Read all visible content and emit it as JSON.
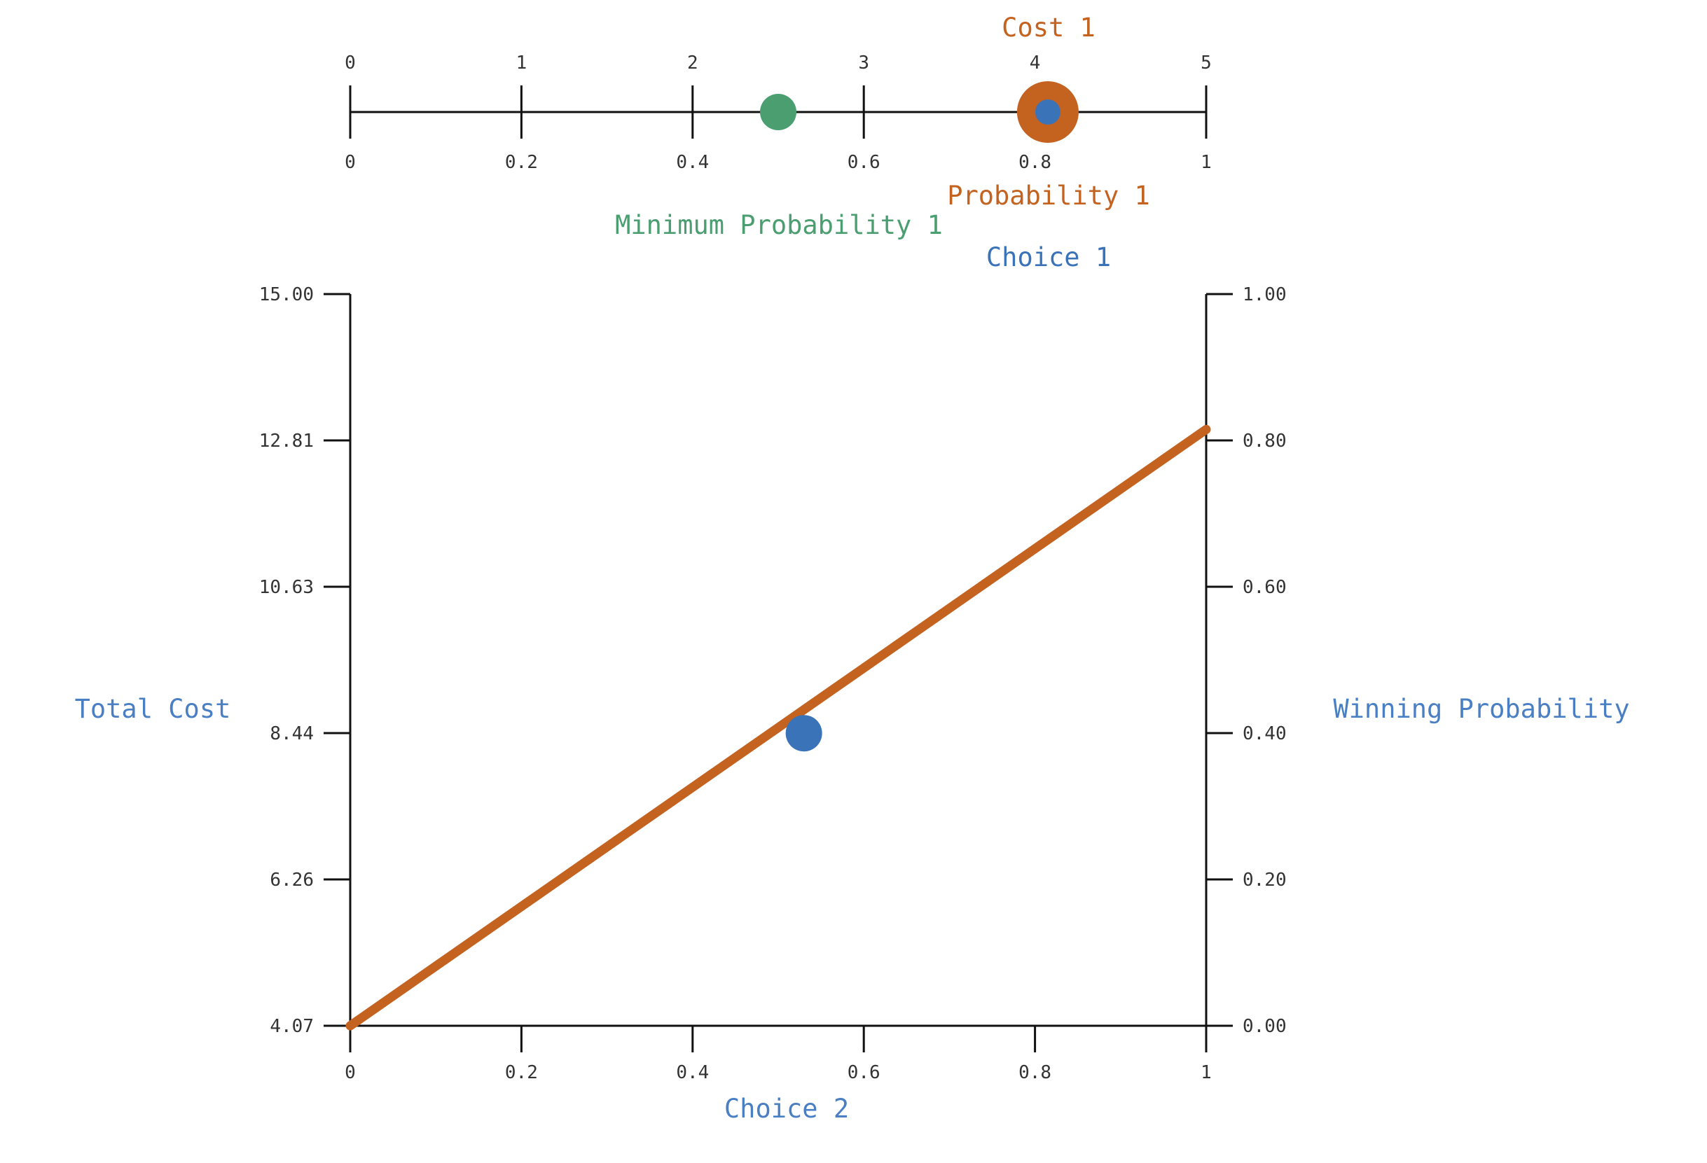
{
  "colors": {
    "axis": "#111111",
    "cost": "#c4621f",
    "choice": "#3b73b9",
    "min_probability": "#4a9e70",
    "axis_title": "#4a7fc4",
    "tick_text": "#333333"
  },
  "chart_data": [
    {
      "type": "scatter",
      "top_scale": {
        "ticks": [
          "0",
          "1",
          "2",
          "3",
          "4",
          "5"
        ],
        "range": [
          0,
          5
        ]
      },
      "bottom_scale": {
        "ticks": [
          "0",
          "0.2",
          "0.4",
          "0.6",
          "0.8",
          "1"
        ],
        "range": [
          0,
          1
        ]
      },
      "markers": [
        {
          "label": "Cost 1",
          "scale": "top",
          "value": 4.07,
          "color": "#c4621f"
        },
        {
          "label": "Probability 1",
          "scale": "bottom",
          "value": 0.815,
          "color": "#c4621f"
        },
        {
          "label": "Choice 1",
          "scale": "bottom",
          "value": 0.815,
          "color": "#3b73b9"
        },
        {
          "label": "Minimum Probability 1",
          "scale": "bottom",
          "value": 0.5,
          "color": "#4a9e70"
        }
      ]
    },
    {
      "type": "line",
      "xlabel": "Choice 2",
      "ylabel": "Total Cost",
      "y2label": "Winning Probability",
      "xlim": [
        0,
        1
      ],
      "ylim": [
        4.07,
        15.0
      ],
      "y2lim": [
        0,
        1
      ],
      "x_ticks": [
        "0",
        "0.2",
        "0.4",
        "0.6",
        "0.8",
        "1"
      ],
      "y_ticks": [
        "4.07",
        "6.26",
        "8.44",
        "10.63",
        "12.81",
        "15.00"
      ],
      "y2_ticks": [
        "0.00",
        "0.20",
        "0.40",
        "0.60",
        "0.80",
        "1.00"
      ],
      "series": [
        {
          "x": [
            0,
            1
          ],
          "y2": [
            0,
            0.815
          ],
          "color": "#c4621f"
        }
      ],
      "point": {
        "x": 0.53,
        "y": 8.44,
        "color": "#3b73b9"
      }
    }
  ]
}
